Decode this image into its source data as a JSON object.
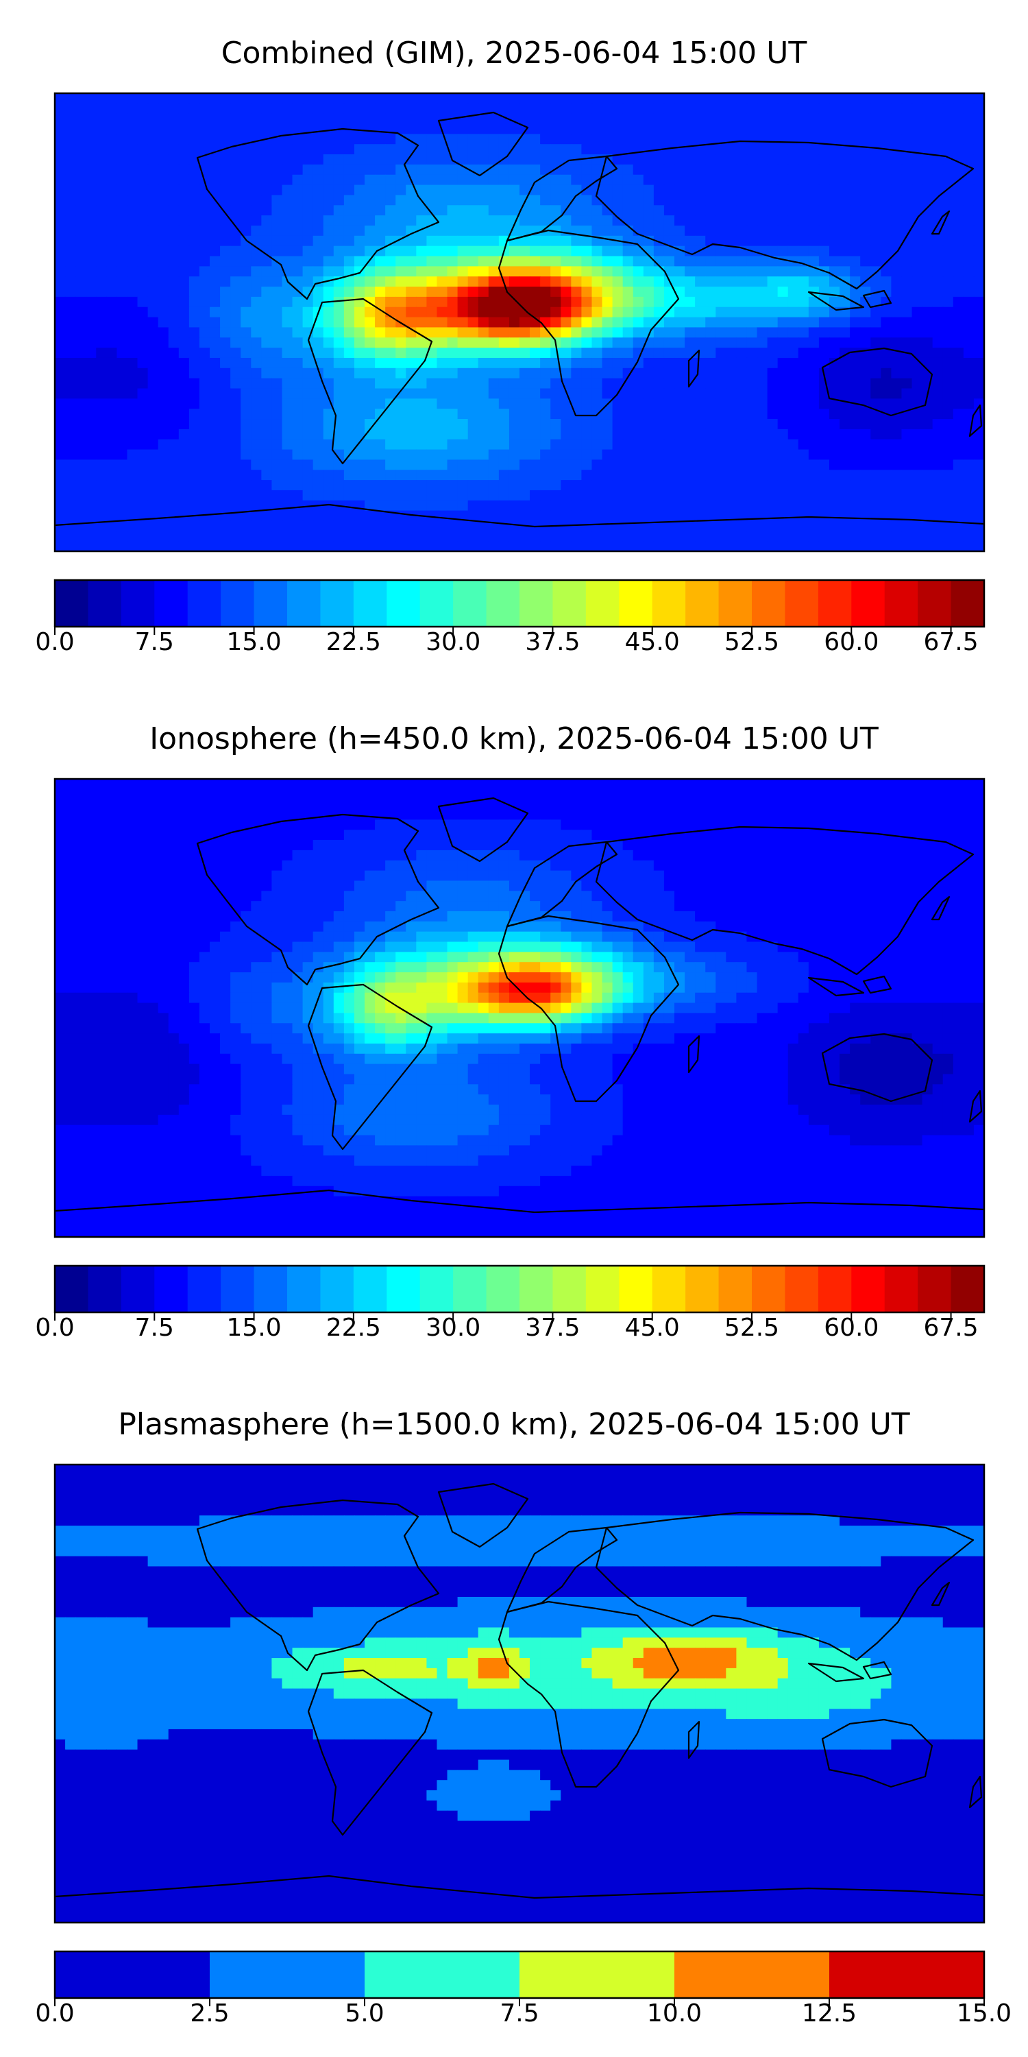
{
  "figure": {
    "panel_count": 3
  },
  "chart_data": [
    {
      "type": "heatmap",
      "title": "Combined (GIM), 2025-06-04 15:00 UT",
      "map": {
        "projection": "equirectangular",
        "coastlines": true,
        "lon_range": [
          -180,
          180
        ],
        "lat_range": [
          -90,
          90
        ]
      },
      "colorbar": {
        "colormap": "jet",
        "min": 0.0,
        "max": 70.0,
        "levels": 28,
        "step": 2.5,
        "ticks": [
          0.0,
          7.5,
          15.0,
          22.5,
          30.0,
          37.5,
          45.0,
          52.5,
          60.0,
          67.5
        ],
        "tick_labels": [
          "0.0",
          "7.5",
          "15.0",
          "22.5",
          "30.0",
          "37.5",
          "45.0",
          "52.5",
          "60.0",
          "67.5"
        ]
      },
      "field": {
        "background": 11,
        "features": [
          {
            "lon": 0,
            "lat": 5,
            "sx": 22,
            "sy": 10,
            "amp": 50
          },
          {
            "lon": -50,
            "lat": 2,
            "sx": 16,
            "sy": 12,
            "amp": 26
          },
          {
            "lon": 15,
            "lat": 18,
            "sx": 26,
            "sy": 10,
            "amp": 14
          },
          {
            "lon": -30,
            "lat": 8,
            "sx": 32,
            "sy": 16,
            "amp": 14
          },
          {
            "lon": 60,
            "lat": 8,
            "sx": 34,
            "sy": 10,
            "amp": 12
          },
          {
            "lon": 110,
            "lat": 12,
            "sx": 18,
            "sy": 8,
            "amp": 10
          },
          {
            "lon": -100,
            "lat": 0,
            "sx": 22,
            "sy": 16,
            "amp": 7
          },
          {
            "lon": -40,
            "lat": -42,
            "sx": 40,
            "sy": 16,
            "amp": 10
          },
          {
            "lon": -20,
            "lat": 45,
            "sx": 40,
            "sy": 16,
            "amp": 8
          },
          {
            "lon": 140,
            "lat": -25,
            "sx": 24,
            "sy": 18,
            "amp": -6
          },
          {
            "lon": -150,
            "lat": -20,
            "sx": 30,
            "sy": 20,
            "amp": -4
          }
        ]
      }
    },
    {
      "type": "heatmap",
      "title": "Ionosphere  (h=450.0 km), 2025-06-04 15:00 UT",
      "map": {
        "projection": "equirectangular",
        "coastlines": true,
        "lon_range": [
          -180,
          180
        ],
        "lat_range": [
          -90,
          90
        ]
      },
      "colorbar": {
        "colormap": "jet",
        "min": 0.0,
        "max": 70.0,
        "levels": 28,
        "step": 2.5,
        "ticks": [
          0.0,
          7.5,
          15.0,
          22.5,
          30.0,
          37.5,
          45.0,
          52.5,
          60.0,
          67.5
        ],
        "tick_labels": [
          "0.0",
          "7.5",
          "15.0",
          "22.5",
          "30.0",
          "37.5",
          "45.0",
          "52.5",
          "60.0",
          "67.5"
        ]
      },
      "field": {
        "background": 9,
        "features": [
          {
            "lon": 5,
            "lat": 6,
            "sx": 22,
            "sy": 9,
            "amp": 40
          },
          {
            "lon": -50,
            "lat": 0,
            "sx": 16,
            "sy": 12,
            "amp": 20
          },
          {
            "lon": 10,
            "lat": 18,
            "sx": 28,
            "sy": 10,
            "amp": 10
          },
          {
            "lon": -30,
            "lat": 8,
            "sx": 32,
            "sy": 16,
            "amp": 12
          },
          {
            "lon": 60,
            "lat": 10,
            "sx": 30,
            "sy": 10,
            "amp": 6
          },
          {
            "lon": -100,
            "lat": 0,
            "sx": 22,
            "sy": 16,
            "amp": 5
          },
          {
            "lon": -40,
            "lat": -42,
            "sx": 40,
            "sy": 16,
            "amp": 8
          },
          {
            "lon": -20,
            "lat": 45,
            "sx": 40,
            "sy": 16,
            "amp": 6
          },
          {
            "lon": 140,
            "lat": -25,
            "sx": 24,
            "sy": 18,
            "amp": -5
          },
          {
            "lon": -150,
            "lat": -20,
            "sx": 30,
            "sy": 20,
            "amp": -4
          }
        ]
      }
    },
    {
      "type": "heatmap",
      "title": "Plasmasphere (h=1500.0 km), 2025-06-04 15:00 UT",
      "map": {
        "projection": "equirectangular",
        "coastlines": true,
        "lon_range": [
          -180,
          180
        ],
        "lat_range": [
          -90,
          90
        ]
      },
      "colorbar": {
        "colormap": "jet",
        "min": 0.0,
        "max": 15.0,
        "levels": 6,
        "step": 2.5,
        "ticks": [
          0.0,
          2.5,
          5.0,
          7.5,
          10.0,
          12.5,
          15.0
        ],
        "tick_labels": [
          "0.0",
          "2.5",
          "5.0",
          "7.5",
          "10.0",
          "12.5",
          "15.0"
        ]
      },
      "field": {
        "background": 1.5,
        "features": [
          {
            "lon": 20,
            "lat": 8,
            "sx": 100,
            "sy": 16,
            "amp": 5
          },
          {
            "lon": -10,
            "lat": 12,
            "sx": 8,
            "sy": 6,
            "amp": 5
          },
          {
            "lon": 65,
            "lat": 14,
            "sx": 22,
            "sy": 8,
            "amp": 6
          },
          {
            "lon": -60,
            "lat": 10,
            "sx": 25,
            "sy": 6,
            "amp": 3
          },
          {
            "lon": 0,
            "lat": 60,
            "sx": 200,
            "sy": 8,
            "amp": 2
          },
          {
            "lon": -160,
            "lat": 0,
            "sx": 20,
            "sy": 20,
            "amp": 1.5
          },
          {
            "lon": -10,
            "lat": -40,
            "sx": 20,
            "sy": 8,
            "amp": 2
          },
          {
            "lon": 115,
            "lat": 0,
            "sx": 30,
            "sy": 14,
            "amp": 2
          },
          {
            "lon": 0,
            "lat": -85,
            "sx": 200,
            "sy": 10,
            "amp": -1.5
          }
        ]
      }
    }
  ]
}
